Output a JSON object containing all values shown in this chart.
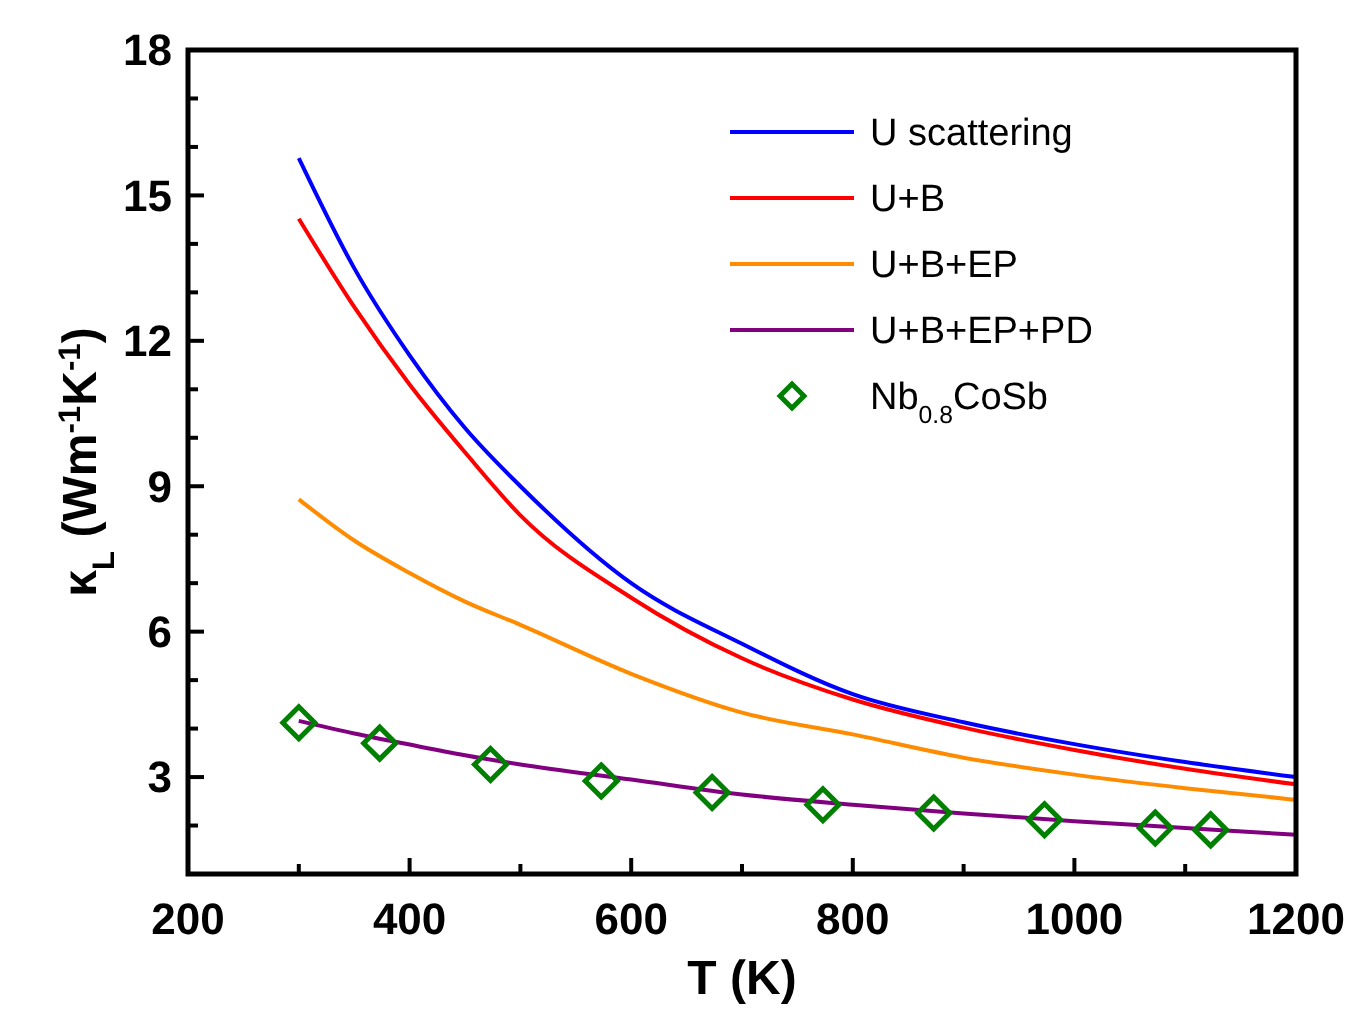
{
  "chart_data": {
    "type": "line",
    "xlabel": "T (K)",
    "ylabel": "κ$_{L}$ (Wm$^{-1}$K$^{-1}$)",
    "xlim": [
      200,
      1200
    ],
    "ylim": [
      1,
      18
    ],
    "xticks": [
      200,
      {
        "value": 300,
        "label": null
      },
      400,
      {
        "value": 500,
        "label": null
      },
      600,
      {
        "value": 700,
        "label": null
      },
      800,
      {
        "value": 900,
        "label": null
      },
      1000,
      {
        "value": 1100,
        "label": null
      },
      1200
    ],
    "yticks": [
      {
        "value": 1,
        "label": null
      },
      {
        "value": 2,
        "label": null
      },
      3,
      {
        "value": 4,
        "label": null
      },
      {
        "value": 5,
        "label": null
      },
      6,
      {
        "value": 7,
        "label": null
      },
      {
        "value": 8,
        "label": null
      },
      9,
      {
        "value": 10,
        "label": null
      },
      {
        "value": 11,
        "label": null
      },
      12,
      {
        "value": 13,
        "label": null
      },
      {
        "value": 14,
        "label": null
      },
      15,
      {
        "value": 16,
        "label": null
      },
      {
        "value": 17,
        "label": null
      },
      18
    ],
    "grid": false,
    "legend": "top right",
    "x": [
      300,
      350,
      400,
      450,
      500,
      600,
      700,
      800,
      900,
      1000,
      1100,
      1200
    ],
    "series": [
      {
        "name": "U scattering",
        "color": "#0000ff",
        "marker": "none",
        "values": [
          15.77,
          13.5,
          11.7,
          10.2,
          9.0,
          7.0,
          5.75,
          4.71,
          4.13,
          3.68,
          3.31,
          3.0
        ]
      },
      {
        "name": "U+B",
        "color": "#ff0000",
        "marker": "none",
        "values": [
          14.52,
          12.7,
          11.1,
          9.7,
          8.4,
          6.7,
          5.45,
          4.6,
          4.02,
          3.56,
          3.17,
          2.85
        ]
      },
      {
        "name": "U+B+EP",
        "color": "#ff8c00",
        "marker": "none",
        "values": [
          8.73,
          7.88,
          7.21,
          6.62,
          6.14,
          5.13,
          4.33,
          3.88,
          3.4,
          3.05,
          2.77,
          2.53
        ]
      },
      {
        "name": "U+B+EP+PD",
        "color": "#800080",
        "marker": "none",
        "values": [
          4.16,
          3.9,
          3.67,
          3.45,
          3.26,
          2.95,
          2.64,
          2.43,
          2.25,
          2.09,
          1.95,
          1.81
        ]
      },
      {
        "name": "Nb$_{0.8}$CoSb",
        "type": "scatter",
        "color": "#008000",
        "marker": "diamond",
        "x": [
          300,
          373,
          473,
          573,
          673,
          773,
          873,
          973,
          1073,
          1123
        ],
        "values": [
          4.12,
          3.7,
          3.26,
          2.92,
          2.68,
          2.43,
          2.26,
          2.12,
          1.95,
          1.91
        ]
      }
    ]
  }
}
